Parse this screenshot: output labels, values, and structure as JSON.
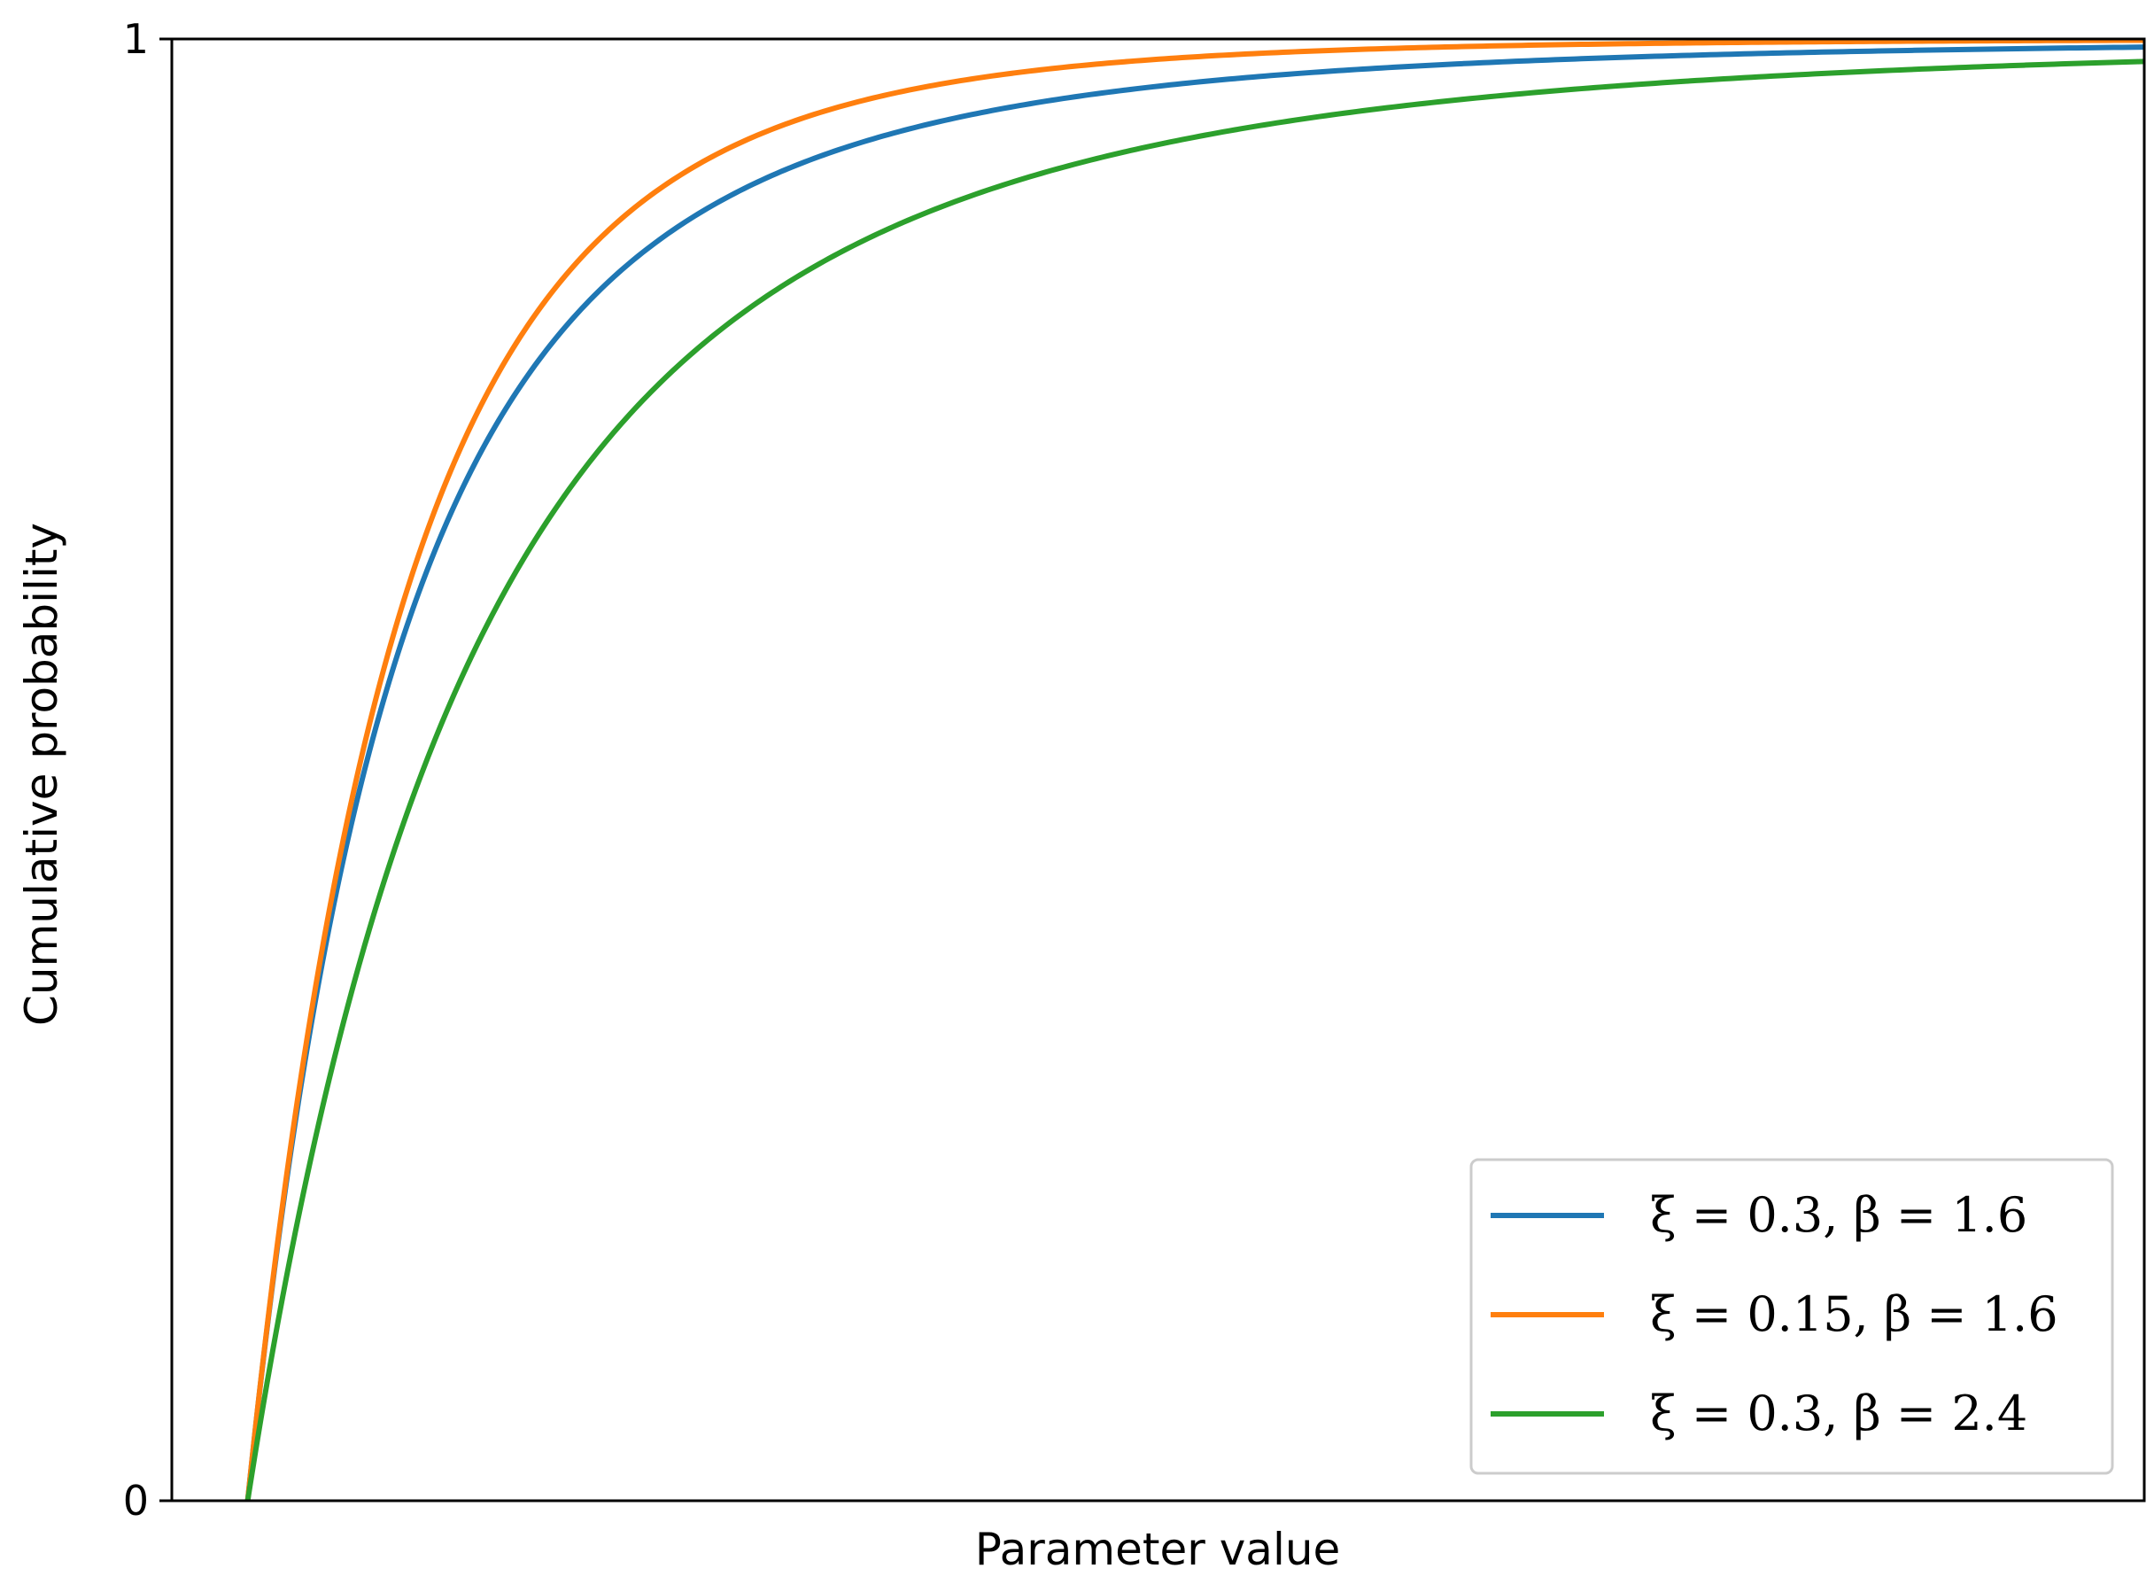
{
  "chart_data": {
    "type": "line",
    "title": "",
    "xlabel": "Parameter value",
    "ylabel": "Cumulative probability",
    "xlim": [
      -0.8,
      20
    ],
    "ylim": [
      0,
      1
    ],
    "y_ticks": [
      0,
      1
    ],
    "y_tick_labels": [
      "0",
      "1"
    ],
    "x_ticks": [],
    "grid": false,
    "legend_position": "lower-right",
    "series": [
      {
        "name": "ξ = 0.3, β = 1.6",
        "color": "#1f77b4",
        "xi": 0.3,
        "beta": 1.6,
        "x": [
          0,
          0.5,
          1,
          1.5,
          2,
          3,
          4,
          5,
          6,
          8,
          10,
          12,
          14,
          16,
          18,
          20
        ],
        "y": [
          0,
          0.261,
          0.435,
          0.555,
          0.64,
          0.749,
          0.814,
          0.856,
          0.885,
          0.92,
          0.941,
          0.954,
          0.963,
          0.969,
          0.974,
          0.978
        ]
      },
      {
        "name": "ξ = 0.15, β = 1.6",
        "color": "#ff7f0e",
        "xi": 0.15,
        "beta": 1.6,
        "x": [
          0,
          0.5,
          1,
          1.5,
          2,
          3,
          4,
          5,
          6,
          8,
          10,
          12,
          14,
          16,
          18,
          20
        ],
        "y": [
          0,
          0.268,
          0.454,
          0.585,
          0.679,
          0.799,
          0.868,
          0.909,
          0.935,
          0.964,
          0.979,
          0.987,
          0.991,
          0.994,
          0.996,
          0.997
        ]
      },
      {
        "name": "ξ = 0.3, β = 2.4",
        "color": "#2ca02c",
        "xi": 0.3,
        "beta": 2.4,
        "x": [
          0,
          0.5,
          1,
          1.5,
          2,
          3,
          4,
          5,
          6,
          8,
          10,
          12,
          14,
          16,
          18,
          20
        ],
        "y": [
          0,
          0.183,
          0.32,
          0.423,
          0.503,
          0.619,
          0.697,
          0.752,
          0.792,
          0.846,
          0.88,
          0.903,
          0.92,
          0.932,
          0.942,
          0.95
        ]
      }
    ]
  }
}
